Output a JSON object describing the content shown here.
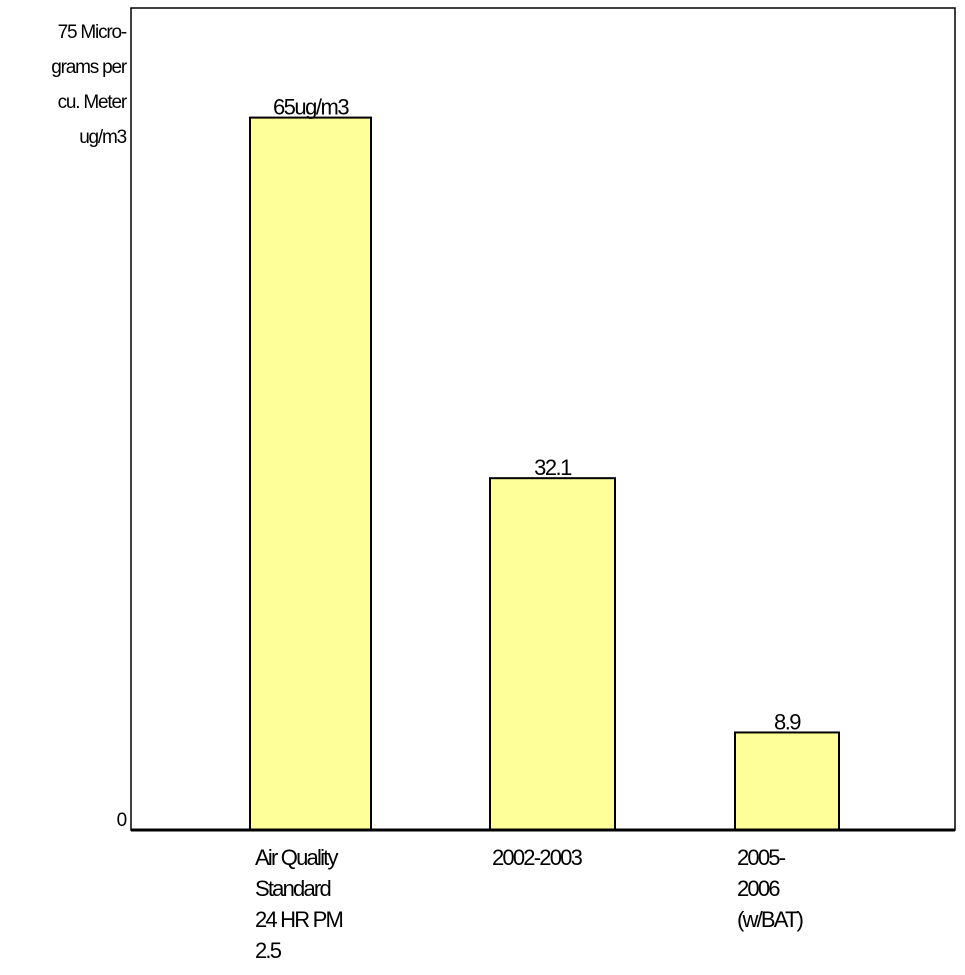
{
  "chart_data": {
    "type": "bar",
    "y_axis_labels": {
      "top": [
        "75 Micro-",
        "grams per",
        "cu. Meter",
        "ug/m3"
      ],
      "zero": "0"
    },
    "ylim": [
      0,
      75
    ],
    "categories": [
      [
        "Air Quality",
        "Standard",
        "24 HR PM",
        "2.5"
      ],
      [
        "2002-2003"
      ],
      [
        "2005-",
        "2006",
        "(w/BAT)"
      ]
    ],
    "values": [
      65,
      32.1,
      8.9
    ],
    "value_labels": [
      "65ug/m3",
      "32.1",
      "8.9"
    ],
    "bar_color": "#ffff99",
    "bar_stroke": "#000000",
    "grid": false
  }
}
